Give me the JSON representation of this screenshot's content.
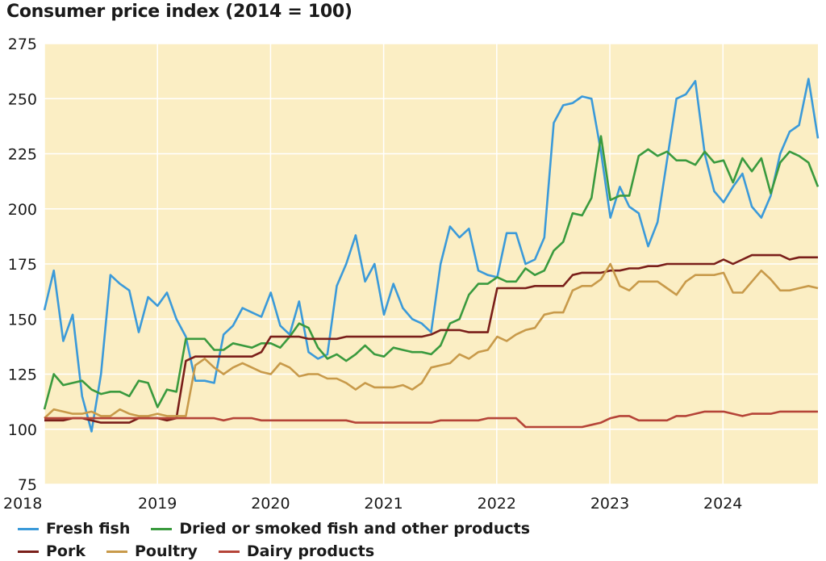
{
  "chart_data": {
    "type": "line",
    "title": "Consumer price index (2014 = 100)",
    "background": "#fbeec4",
    "grid": true,
    "ylim": [
      75,
      275
    ],
    "yticks": [
      75,
      100,
      125,
      150,
      175,
      200,
      225,
      250,
      275
    ],
    "xlim": [
      2018.0,
      2024.84
    ],
    "xticks": [
      "2018",
      "2019",
      "2020",
      "2021",
      "2022",
      "2023",
      "2024"
    ],
    "legend_position": "bottom",
    "series": [
      {
        "name": "Fresh fish",
        "color": "#3b9ad9",
        "values": [
          154,
          172,
          140,
          152,
          115,
          99,
          125,
          170,
          166,
          163,
          144,
          160,
          156,
          162,
          150,
          142,
          122,
          122,
          121,
          143,
          147,
          155,
          153,
          151,
          162,
          147,
          143,
          158,
          135,
          132,
          134,
          165,
          175,
          188,
          167,
          175,
          152,
          166,
          155,
          150,
          148,
          144,
          175,
          192,
          187,
          191,
          172,
          170,
          169,
          189,
          189,
          175,
          177,
          187,
          239,
          247,
          248,
          251,
          250,
          226,
          196,
          210,
          201,
          198,
          183,
          194,
          222,
          250,
          252,
          258,
          225,
          208,
          203,
          210,
          216,
          201,
          196,
          206,
          225,
          235,
          238,
          259,
          232
        ]
      },
      {
        "name": "Dried or smoked fish and other products",
        "color": "#3a9a3e",
        "values": [
          109,
          125,
          120,
          121,
          122,
          118,
          116,
          117,
          117,
          115,
          122,
          121,
          110,
          118,
          117,
          141,
          141,
          141,
          136,
          136,
          139,
          138,
          137,
          139,
          139,
          137,
          142,
          148,
          146,
          137,
          132,
          134,
          131,
          134,
          138,
          134,
          133,
          137,
          136,
          135,
          135,
          134,
          138,
          148,
          150,
          161,
          166,
          166,
          169,
          167,
          167,
          173,
          170,
          172,
          181,
          185,
          198,
          197,
          205,
          233,
          204,
          206,
          206,
          224,
          227,
          224,
          226,
          222,
          222,
          220,
          226,
          221,
          222,
          212,
          223,
          217,
          223,
          207,
          221,
          226,
          224,
          221,
          210
        ]
      },
      {
        "name": "Pork",
        "color": "#7a1f1a",
        "values": [
          104,
          104,
          104,
          105,
          105,
          104,
          103,
          103,
          103,
          103,
          105,
          105,
          105,
          104,
          105,
          131,
          133,
          133,
          133,
          133,
          133,
          133,
          133,
          135,
          142,
          142,
          142,
          142,
          141,
          141,
          141,
          141,
          142,
          142,
          142,
          142,
          142,
          142,
          142,
          142,
          142,
          143,
          145,
          145,
          145,
          144,
          144,
          144,
          164,
          164,
          164,
          164,
          165,
          165,
          165,
          165,
          170,
          171,
          171,
          171,
          172,
          172,
          173,
          173,
          174,
          174,
          175,
          175,
          175,
          175,
          175,
          175,
          177,
          175,
          177,
          179,
          179,
          179,
          179,
          177,
          178,
          178,
          178
        ]
      },
      {
        "name": "Poultry",
        "color": "#c89a4a",
        "values": [
          105,
          109,
          108,
          107,
          107,
          108,
          106,
          106,
          109,
          107,
          106,
          106,
          107,
          106,
          106,
          106,
          129,
          132,
          128,
          125,
          128,
          130,
          128,
          126,
          125,
          130,
          128,
          124,
          125,
          125,
          123,
          123,
          121,
          118,
          121,
          119,
          119,
          119,
          120,
          118,
          121,
          128,
          129,
          130,
          134,
          132,
          135,
          136,
          142,
          140,
          143,
          145,
          146,
          152,
          153,
          153,
          163,
          165,
          165,
          168,
          175,
          165,
          163,
          167,
          167,
          167,
          164,
          161,
          167,
          170,
          170,
          170,
          171,
          162,
          162,
          167,
          172,
          168,
          163,
          163,
          164,
          165,
          164
        ]
      },
      {
        "name": "Dairy products",
        "color": "#b54438",
        "values": [
          105,
          105,
          105,
          105,
          105,
          105,
          105,
          105,
          105,
          105,
          105,
          105,
          105,
          105,
          105,
          105,
          105,
          105,
          105,
          104,
          105,
          105,
          105,
          104,
          104,
          104,
          104,
          104,
          104,
          104,
          104,
          104,
          104,
          103,
          103,
          103,
          103,
          103,
          103,
          103,
          103,
          103,
          104,
          104,
          104,
          104,
          104,
          105,
          105,
          105,
          105,
          101,
          101,
          101,
          101,
          101,
          101,
          101,
          102,
          103,
          105,
          106,
          106,
          104,
          104,
          104,
          104,
          106,
          106,
          107,
          108,
          108,
          108,
          107,
          106,
          107,
          107,
          107,
          108,
          108,
          108,
          108,
          108
        ]
      }
    ]
  },
  "legend": {
    "row1": [
      "Fresh fish",
      "Dried or smoked fish and other products"
    ],
    "row2": [
      "Pork",
      "Poultry",
      "Dairy products"
    ]
  }
}
